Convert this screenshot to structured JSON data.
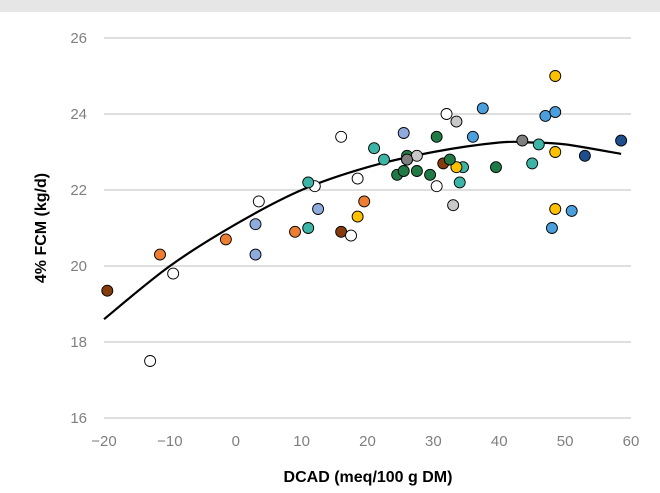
{
  "chart_data": {
    "type": "scatter",
    "title": "",
    "xlabel": "DCAD (meq/100 g DM)",
    "ylabel": "4% FCM (kg/d)",
    "xlim": [
      -20,
      60
    ],
    "ylim": [
      16,
      26
    ],
    "x_ticks": [
      -20,
      -10,
      0,
      10,
      20,
      30,
      40,
      50,
      60
    ],
    "y_ticks": [
      16,
      18,
      20,
      22,
      24,
      26
    ],
    "x_tick_labels": [
      "−20",
      "−10",
      "0",
      "10",
      "20",
      "30",
      "40",
      "50",
      "60"
    ],
    "y_tick_labels": [
      "16",
      "18",
      "20",
      "22",
      "24",
      "26"
    ],
    "grid": "horizontal",
    "legend": "none",
    "fit_curve": {
      "type": "quadratic",
      "x_range": [
        -20,
        58.5
      ],
      "points": [
        [
          -20,
          18.6
        ],
        [
          -10,
          20.0
        ],
        [
          0,
          21.1
        ],
        [
          10,
          22.0
        ],
        [
          20,
          22.6
        ],
        [
          30,
          23.0
        ],
        [
          40,
          23.25
        ],
        [
          45,
          23.25
        ],
        [
          50,
          23.2
        ],
        [
          58.5,
          22.95
        ]
      ],
      "color": "#000000"
    },
    "series": [
      {
        "color": "#843c0c",
        "points": [
          [
            -19.5,
            19.35
          ],
          [
            16,
            20.9
          ],
          [
            31.5,
            22.7
          ]
        ]
      },
      {
        "color": "#ed7d31",
        "points": [
          [
            -11.5,
            20.3
          ],
          [
            -1.5,
            20.7
          ],
          [
            9,
            20.9
          ],
          [
            19.5,
            21.7
          ]
        ]
      },
      {
        "color": "#ffffff",
        "points": [
          [
            -13,
            17.5
          ],
          [
            -9.5,
            19.8
          ],
          [
            3.5,
            21.7
          ],
          [
            12,
            22.1
          ],
          [
            16,
            23.4
          ],
          [
            17.5,
            20.8
          ],
          [
            18.5,
            22.3
          ],
          [
            30.5,
            22.1
          ],
          [
            32,
            24.0
          ]
        ]
      },
      {
        "color": "#8faadc",
        "points": [
          [
            3,
            20.3
          ],
          [
            3,
            21.1
          ],
          [
            12.5,
            21.5
          ],
          [
            25.5,
            23.5
          ],
          [
            26,
            22.8
          ]
        ]
      },
      {
        "color": "#3cb4a6",
        "points": [
          [
            11,
            22.2
          ],
          [
            11,
            21.0
          ],
          [
            21,
            23.1
          ],
          [
            22.5,
            22.8
          ],
          [
            34,
            22.2
          ],
          [
            34.5,
            22.6
          ],
          [
            45,
            22.7
          ],
          [
            46,
            23.2
          ]
        ]
      },
      {
        "color": "#ffc000",
        "points": [
          [
            18.5,
            21.3
          ],
          [
            33.5,
            22.6
          ],
          [
            48.5,
            25.0
          ],
          [
            48.5,
            23.0
          ],
          [
            48.5,
            21.5
          ]
        ]
      },
      {
        "color": "#217a45",
        "points": [
          [
            24.5,
            22.4
          ],
          [
            25.5,
            22.5
          ],
          [
            26,
            22.9
          ],
          [
            27.5,
            22.5
          ],
          [
            29.5,
            22.4
          ],
          [
            30.5,
            23.4
          ],
          [
            32.5,
            22.8
          ],
          [
            39.5,
            22.6
          ]
        ]
      },
      {
        "color": "#c8c8c8",
        "points": [
          [
            27.5,
            22.9
          ],
          [
            33,
            21.6
          ],
          [
            33.5,
            23.8
          ]
        ]
      },
      {
        "color": "#7f7f7f",
        "points": [
          [
            26,
            22.8
          ],
          [
            43.5,
            23.3
          ]
        ]
      },
      {
        "color": "#4a9fdc",
        "points": [
          [
            36,
            23.4
          ],
          [
            37.5,
            24.15
          ],
          [
            47,
            23.95
          ],
          [
            48.5,
            24.05
          ],
          [
            48,
            21.0
          ],
          [
            51,
            21.45
          ]
        ]
      },
      {
        "color": "#1f4e8c",
        "points": [
          [
            53,
            22.9
          ],
          [
            58.5,
            23.3
          ]
        ]
      }
    ]
  }
}
